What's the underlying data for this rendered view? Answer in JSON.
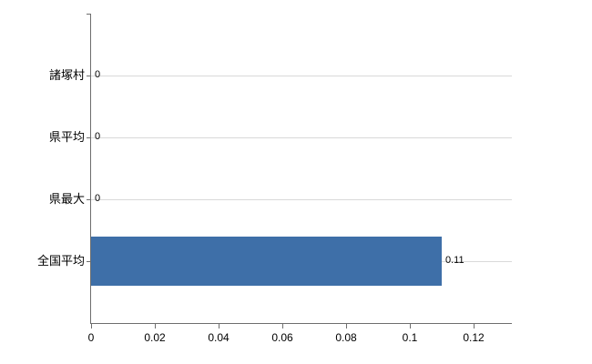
{
  "chart_data": {
    "type": "bar",
    "orientation": "horizontal",
    "title": "",
    "categories": [
      "諸塚村",
      "県平均",
      "県最大",
      "全国平均"
    ],
    "values": [
      0,
      0,
      0,
      0.11
    ],
    "value_labels": [
      "0",
      "0",
      "0",
      "0.11"
    ],
    "x_ticks": [
      0,
      0.02,
      0.04,
      0.06,
      0.08,
      0.1,
      0.12
    ],
    "x_tick_labels": [
      "0",
      "0.02",
      "0.04",
      "0.06",
      "0.08",
      "0.1",
      "0.12"
    ],
    "xlim": [
      0,
      0.132
    ],
    "grid": true,
    "legend": false,
    "bar_color": "#3e6fa8",
    "gridline_color": "#d9d9d9",
    "axis_color": "#6e6e6e",
    "label_color": "#000000"
  }
}
